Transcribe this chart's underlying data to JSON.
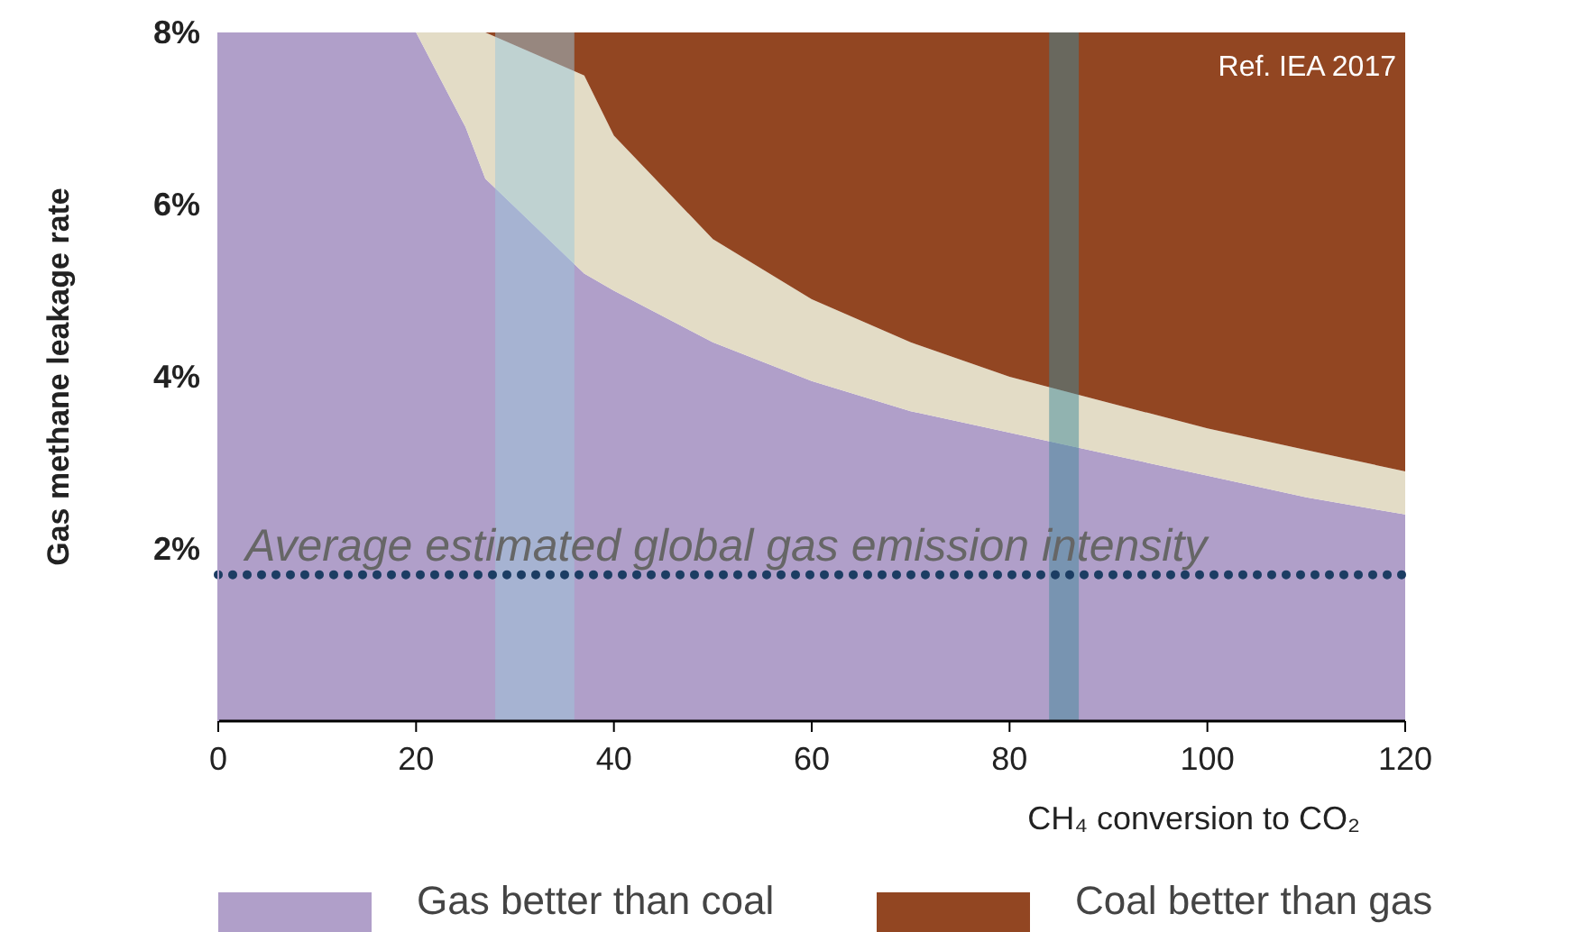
{
  "chart_data": {
    "type": "area",
    "stacked": true,
    "xlabel": "CH₄ conversion to CO₂",
    "ylabel": "Gas methane leakage rate",
    "x": [
      0,
      10,
      20,
      25,
      27,
      37,
      40,
      50,
      60,
      70,
      80,
      90,
      100,
      110,
      120
    ],
    "series": [
      {
        "name": "Gas better than coal",
        "color": "#b09fc9",
        "values": [
          8,
          8,
          8,
          6.9,
          6.3,
          5.2,
          5.0,
          4.4,
          3.95,
          3.6,
          3.35,
          3.1,
          2.85,
          2.6,
          2.4
        ]
      },
      {
        "color": "#e3dcc6",
        "values": [
          0,
          0,
          0,
          1.1,
          1.7,
          2.3,
          1.8,
          1.2,
          0.95,
          0.8,
          0.65,
          0.6,
          0.55,
          0.55,
          0.5
        ]
      },
      {
        "name": "Coal better than gas",
        "color": "#924622",
        "values": [
          0,
          0,
          0,
          0,
          0,
          0.5,
          1.2,
          2.4,
          3.1,
          3.6,
          4.0,
          4.3,
          4.6,
          4.85,
          5.1
        ]
      }
    ],
    "xlim": [
      0,
      120
    ],
    "xticks": [
      0,
      20,
      40,
      60,
      80,
      100,
      120
    ],
    "ylim": [
      0,
      8
    ],
    "yticks": [
      {
        "value": 2,
        "label": "2%"
      },
      {
        "value": 4,
        "label": "4%"
      },
      {
        "value": 6,
        "label": "6%"
      },
      {
        "value": 8,
        "label": "8%"
      }
    ],
    "bands": [
      {
        "axis": "x",
        "from": 28,
        "to": 36,
        "color": "#9cc8dc"
      },
      {
        "axis": "x",
        "from": 84,
        "to": 87,
        "color": "#3f8a9a"
      }
    ],
    "ref_lines": [
      {
        "axis": "y",
        "value": 1.7,
        "label": "Average estimated global gas emission intensity",
        "color": "#1c3d63",
        "line_style": "dotted"
      }
    ],
    "annotations": [
      "Ref. IEA 2017"
    ],
    "legend": "bottom"
  }
}
